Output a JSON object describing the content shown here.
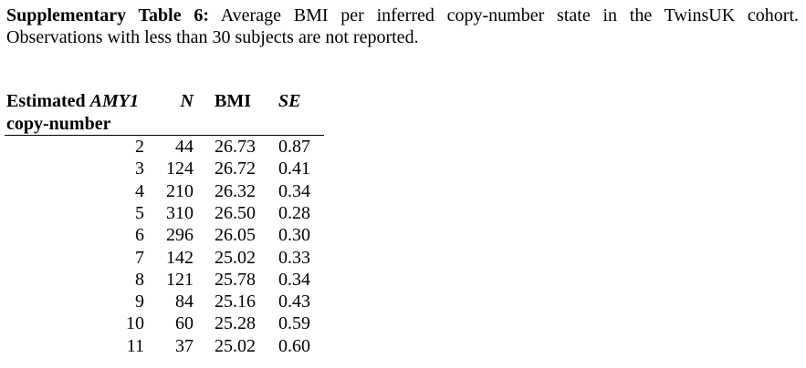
{
  "caption": {
    "label": "Supplementary Table 6:",
    "lines": [
      "Average BMI per inferred copy-number state in the TwinsUK cohort.",
      "Observations with less than 30 subjects are not reported."
    ]
  },
  "table": {
    "header": {
      "estimated": "Estimated",
      "gene": "AMY1",
      "copy_number": "copy-number",
      "n": "N",
      "bmi": "BMI",
      "se": "SE"
    },
    "rows": [
      [
        "2",
        "44",
        "26.73",
        "0.87"
      ],
      [
        "3",
        "124",
        "26.72",
        "0.41"
      ],
      [
        "4",
        "210",
        "26.32",
        "0.34"
      ],
      [
        "5",
        "310",
        "26.50",
        "0.28"
      ],
      [
        "6",
        "296",
        "26.05",
        "0.30"
      ],
      [
        "7",
        "142",
        "25.02",
        "0.33"
      ],
      [
        "8",
        "121",
        "25.78",
        "0.34"
      ],
      [
        "9",
        "84",
        "25.16",
        "0.43"
      ],
      [
        "10",
        "60",
        "25.28",
        "0.59"
      ],
      [
        "11",
        "37",
        "25.02",
        "0.60"
      ]
    ]
  }
}
